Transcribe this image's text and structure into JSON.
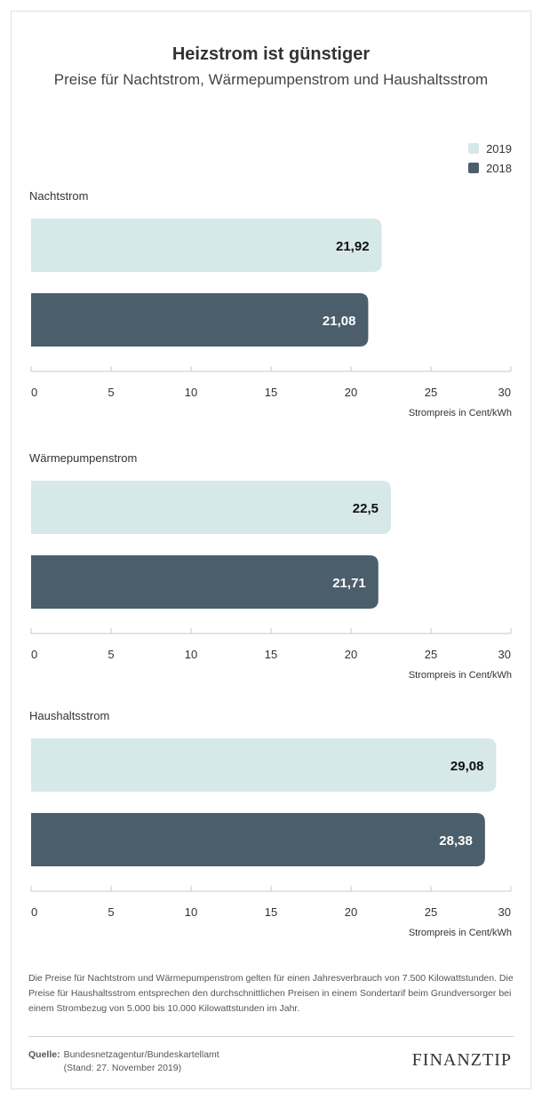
{
  "header": {
    "title": "Heizstrom ist günstiger",
    "subtitle": "Preise für Nachtstrom, Wärmepumpenstrom und Haushaltsstrom"
  },
  "legend": [
    {
      "label": "2019",
      "color": "#d7e8e9"
    },
    {
      "label": "2018",
      "color": "#4a5e6b"
    }
  ],
  "chart_data": [
    {
      "type": "bar",
      "title": "Nachtstrom",
      "xlabel": "Strompreis in Cent/kWh",
      "xlim": [
        0,
        30
      ],
      "ticks": [
        "0",
        "5",
        "10",
        "15",
        "20",
        "25",
        "30"
      ],
      "series": [
        {
          "name": "2019",
          "value": 21.92,
          "label": "21,92",
          "color": "#d7e8e9"
        },
        {
          "name": "2018",
          "value": 21.08,
          "label": "21,08",
          "color": "#4a5e6b"
        }
      ]
    },
    {
      "type": "bar",
      "title": "Wärmepumpenstrom",
      "xlabel": "Strompreis in Cent/kWh",
      "xlim": [
        0,
        30
      ],
      "ticks": [
        "0",
        "5",
        "10",
        "15",
        "20",
        "25",
        "30"
      ],
      "series": [
        {
          "name": "2019",
          "value": 22.5,
          "label": "22,5",
          "color": "#d7e8e9"
        },
        {
          "name": "2018",
          "value": 21.71,
          "label": "21,71",
          "color": "#4a5e6b"
        }
      ]
    },
    {
      "type": "bar",
      "title": "Haushaltsstrom",
      "xlabel": "Strompreis in Cent/kWh",
      "xlim": [
        0,
        30
      ],
      "ticks": [
        "0",
        "5",
        "10",
        "15",
        "20",
        "25",
        "30"
      ],
      "series": [
        {
          "name": "2019",
          "value": 29.08,
          "label": "29,08",
          "color": "#d7e8e9"
        },
        {
          "name": "2018",
          "value": 28.38,
          "label": "28,38",
          "color": "#4a5e6b"
        }
      ]
    }
  ],
  "footnote": "Die Preise für Nachtstrom und Wärmepumpenstrom gelten für einen Jahresverbrauch von 7.500 Kilowattstunden. Die Preise für Haushaltsstrom entsprechen den durchschnittlichen Preisen in einem Sondertarif beim Grundversorger bei einem Strombezug von 5.000 bis 10.000 Kilowattstunden im Jahr.",
  "source": {
    "key": "Quelle:",
    "line1": "Bundesnetzagentur/Bundeskartellamt",
    "line2": "(Stand: 27. November 2019)"
  },
  "logo": "FINANZTIP"
}
